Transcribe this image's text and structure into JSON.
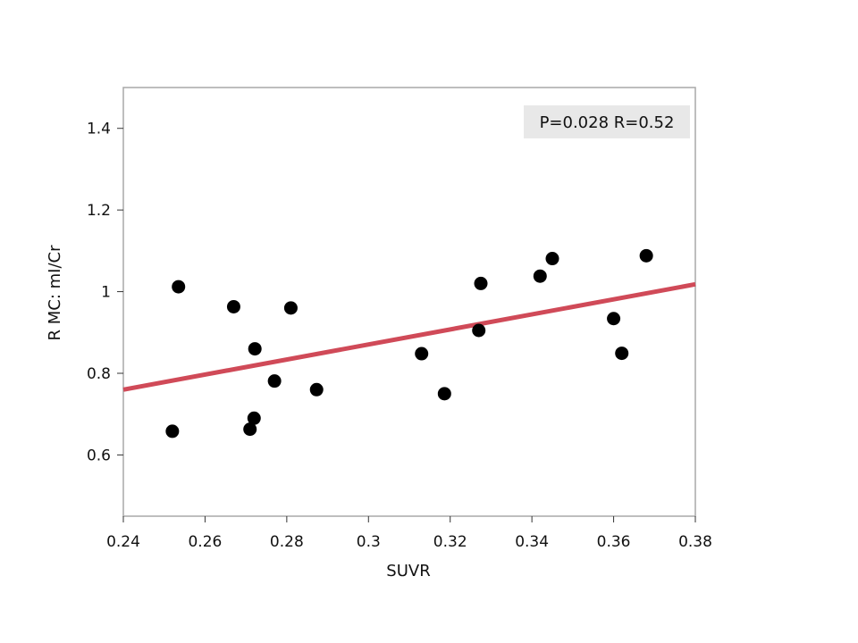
{
  "chart_data": {
    "type": "scatter",
    "title": "",
    "xlabel": "SUVR",
    "ylabel": "R MC: mI/Cr",
    "xlim": [
      0.24,
      0.38
    ],
    "ylim": [
      0.45,
      1.5
    ],
    "x_ticks": [
      0.24,
      0.26,
      0.28,
      0.3,
      0.32,
      0.34,
      0.36,
      0.38
    ],
    "x_tick_labels": [
      "0.24",
      "0.26",
      "0.28",
      "0.3",
      "0.32",
      "0.34",
      "0.36",
      "0.38"
    ],
    "y_ticks": [
      0.6,
      0.8,
      1.0,
      1.2,
      1.4
    ],
    "y_tick_labels": [
      "0.6",
      "0.8",
      "1",
      "1.2",
      "1.4"
    ],
    "grid": false,
    "legend": "none",
    "points": [
      {
        "x": 0.252,
        "y": 0.658
      },
      {
        "x": 0.2535,
        "y": 1.012
      },
      {
        "x": 0.267,
        "y": 0.963
      },
      {
        "x": 0.271,
        "y": 0.663
      },
      {
        "x": 0.272,
        "y": 0.69
      },
      {
        "x": 0.2722,
        "y": 0.86
      },
      {
        "x": 0.277,
        "y": 0.781
      },
      {
        "x": 0.281,
        "y": 0.96
      },
      {
        "x": 0.2873,
        "y": 0.76
      },
      {
        "x": 0.313,
        "y": 0.848
      },
      {
        "x": 0.3186,
        "y": 0.75
      },
      {
        "x": 0.327,
        "y": 0.905
      },
      {
        "x": 0.3275,
        "y": 1.02
      },
      {
        "x": 0.342,
        "y": 1.038
      },
      {
        "x": 0.345,
        "y": 1.081
      },
      {
        "x": 0.36,
        "y": 0.934
      },
      {
        "x": 0.362,
        "y": 0.849
      },
      {
        "x": 0.368,
        "y": 1.088
      }
    ],
    "fit_line": {
      "x": [
        0.24,
        0.38
      ],
      "y": [
        0.76,
        1.018
      ]
    },
    "annotation": "P=0.028 R=0.52",
    "colors": {
      "points": "#000000",
      "fit_line": "#d04a58",
      "frame": "#a8a8a8",
      "annotation_bg": "#e8e8e8"
    }
  }
}
